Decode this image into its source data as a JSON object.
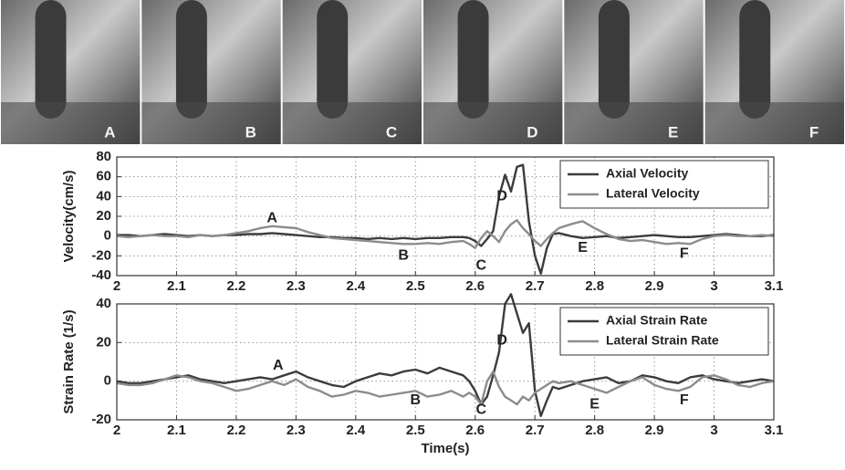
{
  "frames": {
    "labels": [
      "A",
      "B",
      "C",
      "D",
      "E",
      "F"
    ]
  },
  "chart_data": [
    {
      "type": "line",
      "ylabel": "Velocity(cm/s)",
      "x": [
        2,
        2.02,
        2.04,
        2.06,
        2.08,
        2.1,
        2.12,
        2.14,
        2.16,
        2.18,
        2.2,
        2.22,
        2.24,
        2.26,
        2.28,
        2.3,
        2.32,
        2.34,
        2.36,
        2.38,
        2.4,
        2.42,
        2.44,
        2.46,
        2.48,
        2.5,
        2.52,
        2.54,
        2.56,
        2.58,
        2.59,
        2.6,
        2.61,
        2.62,
        2.63,
        2.64,
        2.65,
        2.66,
        2.67,
        2.68,
        2.69,
        2.7,
        2.71,
        2.72,
        2.73,
        2.74,
        2.76,
        2.78,
        2.8,
        2.82,
        2.84,
        2.86,
        2.88,
        2.9,
        2.92,
        2.94,
        2.96,
        2.98,
        3,
        3.02,
        3.04,
        3.06,
        3.08,
        3.1
      ],
      "series": [
        {
          "name": "Axial Velocity",
          "color": "#3c3c3c",
          "values": [
            1,
            1,
            0,
            1,
            2,
            1,
            0,
            1,
            0,
            1,
            1,
            2,
            2,
            3,
            2,
            1,
            0,
            -1,
            -1,
            -2,
            -2,
            -3,
            -2,
            -3,
            -2,
            -3,
            -2,
            -2,
            -1,
            -1,
            -2,
            -5,
            -10,
            -3,
            5,
            40,
            62,
            45,
            70,
            72,
            15,
            -20,
            -38,
            -12,
            2,
            3,
            0,
            -2,
            -1,
            0,
            -2,
            -1,
            0,
            1,
            0,
            -1,
            -1,
            0,
            1,
            2,
            1,
            0,
            0,
            1
          ]
        },
        {
          "name": "Lateral Velocity",
          "color": "#8c8c8c",
          "values": [
            0,
            -1,
            0,
            1,
            0,
            0,
            -1,
            1,
            0,
            1,
            3,
            5,
            8,
            10,
            9,
            8,
            4,
            1,
            -2,
            -3,
            -4,
            -5,
            -6,
            -7,
            -8,
            -8,
            -7,
            -8,
            -6,
            -5,
            -8,
            -12,
            -2,
            5,
            0,
            -6,
            5,
            12,
            16,
            8,
            2,
            -5,
            -10,
            -3,
            3,
            8,
            12,
            15,
            8,
            2,
            -3,
            -5,
            -4,
            -6,
            -8,
            -7,
            -8,
            -3,
            0,
            1,
            0,
            0,
            1,
            0
          ]
        }
      ],
      "xlim": [
        2,
        3.1
      ],
      "xticks": [
        2,
        2.1,
        2.2,
        2.3,
        2.4,
        2.5,
        2.6,
        2.7,
        2.8,
        2.9,
        3,
        3.1
      ],
      "ylim": [
        -40,
        80
      ],
      "yticks": [
        -40,
        -20,
        0,
        20,
        40,
        60,
        80
      ],
      "grid": true,
      "legend": "upper right",
      "annotations": [
        {
          "text": "A",
          "x": 2.26,
          "y": 18
        },
        {
          "text": "B",
          "x": 2.48,
          "y": -20
        },
        {
          "text": "C",
          "x": 2.61,
          "y": -30
        },
        {
          "text": "D",
          "x": 2.645,
          "y": 40
        },
        {
          "text": "E",
          "x": 2.78,
          "y": -12
        },
        {
          "text": "F",
          "x": 2.95,
          "y": -18
        }
      ]
    },
    {
      "type": "line",
      "ylabel": "Strain Rate (1/s)",
      "xlabel": "Time(s)",
      "x": [
        2,
        2.02,
        2.04,
        2.06,
        2.08,
        2.1,
        2.12,
        2.14,
        2.16,
        2.18,
        2.2,
        2.22,
        2.24,
        2.26,
        2.28,
        2.3,
        2.32,
        2.34,
        2.36,
        2.38,
        2.4,
        2.42,
        2.44,
        2.46,
        2.48,
        2.5,
        2.52,
        2.54,
        2.56,
        2.58,
        2.59,
        2.6,
        2.61,
        2.62,
        2.63,
        2.64,
        2.65,
        2.66,
        2.67,
        2.68,
        2.69,
        2.7,
        2.71,
        2.72,
        2.73,
        2.74,
        2.76,
        2.78,
        2.8,
        2.82,
        2.84,
        2.86,
        2.88,
        2.9,
        2.92,
        2.94,
        2.96,
        2.98,
        3,
        3.02,
        3.04,
        3.06,
        3.08,
        3.1
      ],
      "series": [
        {
          "name": "Axial Strain Rate",
          "color": "#3c3c3c",
          "values": [
            0,
            -1,
            -1,
            0,
            1,
            2,
            3,
            1,
            0,
            -1,
            0,
            1,
            2,
            1,
            3,
            5,
            2,
            0,
            -2,
            -3,
            0,
            2,
            4,
            3,
            5,
            6,
            4,
            7,
            5,
            3,
            0,
            -5,
            -12,
            -8,
            3,
            15,
            40,
            45,
            35,
            25,
            30,
            -5,
            -18,
            -10,
            -3,
            -4,
            -2,
            0,
            1,
            2,
            -1,
            0,
            3,
            2,
            0,
            -1,
            2,
            3,
            1,
            0,
            -1,
            0,
            1,
            0
          ]
        },
        {
          "name": "Lateral Strain Rate",
          "color": "#8c8c8c",
          "values": [
            -1,
            -2,
            -2,
            -1,
            1,
            3,
            2,
            0,
            -1,
            -3,
            -5,
            -4,
            -2,
            0,
            -2,
            1,
            -3,
            -5,
            -8,
            -7,
            -5,
            -6,
            -8,
            -7,
            -6,
            -5,
            -8,
            -7,
            -5,
            -8,
            -6,
            -8,
            -12,
            0,
            5,
            -3,
            -8,
            -10,
            -12,
            -8,
            -10,
            -6,
            -4,
            -2,
            0,
            -1,
            0,
            -2,
            -4,
            -6,
            -3,
            0,
            2,
            -2,
            -4,
            -5,
            -3,
            2,
            3,
            1,
            -2,
            -3,
            -1,
            0
          ]
        }
      ],
      "xlim": [
        2,
        3.1
      ],
      "xticks": [
        2,
        2.1,
        2.2,
        2.3,
        2.4,
        2.5,
        2.6,
        2.7,
        2.8,
        2.9,
        3,
        3.1
      ],
      "ylim": [
        -20,
        40
      ],
      "yticks": [
        -20,
        0,
        20,
        40
      ],
      "grid": true,
      "legend": "upper right",
      "annotations": [
        {
          "text": "A",
          "x": 2.27,
          "y": 8
        },
        {
          "text": "B",
          "x": 2.5,
          "y": -10
        },
        {
          "text": "C",
          "x": 2.61,
          "y": -15
        },
        {
          "text": "D",
          "x": 2.645,
          "y": 21
        },
        {
          "text": "E",
          "x": 2.8,
          "y": -12
        },
        {
          "text": "F",
          "x": 2.95,
          "y": -10
        }
      ]
    }
  ]
}
